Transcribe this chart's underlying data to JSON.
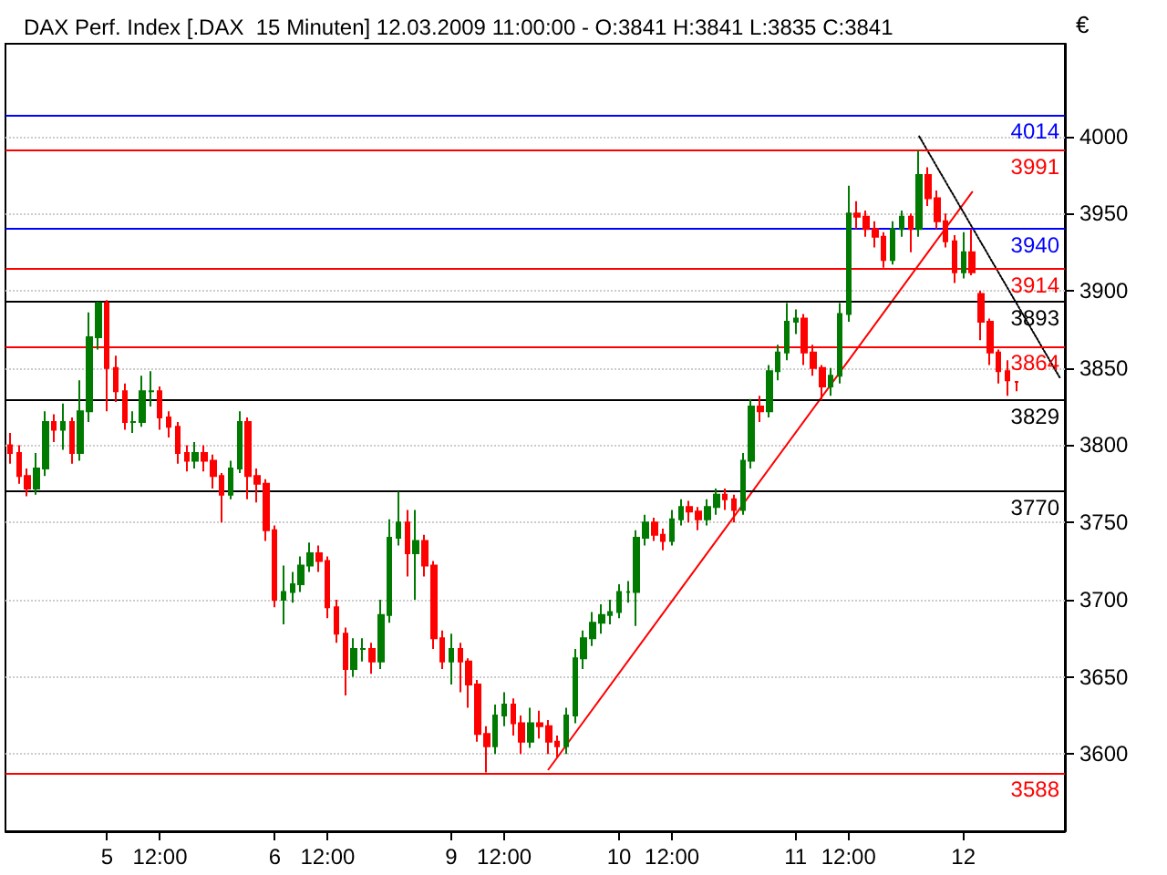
{
  "chart_data": {
    "type": "candlestick",
    "title": "DAX Perf. Index [.DAX  15 Minuten] 12.03.2009 11:00:00 - O:3841 H:3841 L:3835 C:3841",
    "ylabel": "€",
    "categories": [
      null,
      null,
      null,
      null,
      null,
      null,
      null,
      null,
      null,
      null,
      null,
      "5",
      null,
      null,
      null,
      null,
      null,
      "12:00",
      null,
      null,
      null,
      null,
      null,
      null,
      null,
      null,
      null,
      null,
      null,
      null,
      "6",
      null,
      null,
      null,
      null,
      null,
      "12:00",
      null,
      null,
      null,
      null,
      null,
      null,
      null,
      null,
      null,
      null,
      null,
      null,
      null,
      "9",
      null,
      null,
      null,
      null,
      null,
      "12:00",
      null,
      null,
      null,
      null,
      null,
      null,
      null,
      null,
      null,
      null,
      null,
      null,
      "10",
      null,
      null,
      null,
      null,
      null,
      "12:00",
      null,
      null,
      null,
      null,
      null,
      null,
      null,
      null,
      null,
      null,
      null,
      null,
      null,
      "11",
      null,
      null,
      null,
      null,
      null,
      "12:00",
      null,
      null,
      null,
      null,
      null,
      null,
      null,
      null,
      null,
      null,
      null,
      null,
      "12",
      null,
      null,
      null,
      null,
      null,
      null,
      null,
      null,
      null,
      null,
      null
    ],
    "ohlc": [
      [
        3800,
        3808,
        3788,
        3795
      ],
      [
        3795,
        3800,
        3775,
        3780
      ],
      [
        3780,
        3785,
        3767,
        3772
      ],
      [
        3772,
        3795,
        3768,
        3785
      ],
      [
        3785,
        3822,
        3780,
        3815
      ],
      [
        3815,
        3820,
        3802,
        3810
      ],
      [
        3810,
        3827,
        3797,
        3815
      ],
      [
        3815,
        3818,
        3788,
        3795
      ],
      [
        3795,
        3842,
        3790,
        3822
      ],
      [
        3822,
        3886,
        3815,
        3870
      ],
      [
        3870,
        3893,
        3862,
        3892
      ],
      [
        3892,
        3894,
        3822,
        3850
      ],
      [
        3850,
        3858,
        3828,
        3835
      ],
      [
        3835,
        3840,
        3810,
        3815
      ],
      [
        3815,
        3822,
        3808,
        3815
      ],
      [
        3815,
        3845,
        3812,
        3835
      ],
      [
        3835,
        3848,
        3825,
        3835
      ],
      [
        3835,
        3838,
        3810,
        3818
      ],
      [
        3818,
        3822,
        3805,
        3812
      ],
      [
        3812,
        3815,
        3788,
        3795
      ],
      [
        3795,
        3800,
        3783,
        3790
      ],
      [
        3790,
        3802,
        3785,
        3795
      ],
      [
        3795,
        3800,
        3783,
        3790
      ],
      [
        3790,
        3794,
        3772,
        3780
      ],
      [
        3780,
        3782,
        3750,
        3768
      ],
      [
        3768,
        3790,
        3765,
        3785
      ],
      [
        3785,
        3822,
        3782,
        3815
      ],
      [
        3815,
        3818,
        3765,
        3780
      ],
      [
        3780,
        3785,
        3763,
        3775
      ],
      [
        3775,
        3778,
        3738,
        3745
      ],
      [
        3745,
        3748,
        3695,
        3700
      ],
      [
        3700,
        3722,
        3684,
        3705
      ],
      [
        3705,
        3718,
        3698,
        3710
      ],
      [
        3710,
        3728,
        3705,
        3722
      ],
      [
        3722,
        3737,
        3718,
        3730
      ],
      [
        3730,
        3735,
        3718,
        3725
      ],
      [
        3725,
        3728,
        3688,
        3695
      ],
      [
        3695,
        3700,
        3672,
        3678
      ],
      [
        3678,
        3682,
        3638,
        3655
      ],
      [
        3655,
        3675,
        3650,
        3668
      ],
      [
        3668,
        3675,
        3660,
        3668
      ],
      [
        3668,
        3672,
        3652,
        3660
      ],
      [
        3660,
        3700,
        3655,
        3690
      ],
      [
        3690,
        3752,
        3685,
        3740
      ],
      [
        3740,
        3770,
        3735,
        3750
      ],
      [
        3750,
        3758,
        3715,
        3730
      ],
      [
        3730,
        3758,
        3700,
        3738
      ],
      [
        3738,
        3742,
        3715,
        3722
      ],
      [
        3722,
        3725,
        3668,
        3675
      ],
      [
        3675,
        3680,
        3655,
        3660
      ],
      [
        3660,
        3678,
        3645,
        3668
      ],
      [
        3668,
        3672,
        3640,
        3660
      ],
      [
        3660,
        3662,
        3630,
        3645
      ],
      [
        3645,
        3648,
        3608,
        3613
      ],
      [
        3613,
        3618,
        3588,
        3605
      ],
      [
        3605,
        3632,
        3600,
        3625
      ],
      [
        3625,
        3640,
        3618,
        3632
      ],
      [
        3632,
        3636,
        3612,
        3620
      ],
      [
        3620,
        3625,
        3600,
        3608
      ],
      [
        3608,
        3630,
        3604,
        3620
      ],
      [
        3620,
        3628,
        3610,
        3618
      ],
      [
        3618,
        3622,
        3600,
        3608
      ],
      [
        3608,
        3612,
        3598,
        3605
      ],
      [
        3605,
        3630,
        3600,
        3625
      ],
      [
        3625,
        3668,
        3620,
        3662
      ],
      [
        3662,
        3680,
        3655,
        3675
      ],
      [
        3675,
        3692,
        3670,
        3685
      ],
      [
        3685,
        3697,
        3678,
        3690
      ],
      [
        3690,
        3700,
        3684,
        3692
      ],
      [
        3692,
        3710,
        3688,
        3705
      ],
      [
        3705,
        3712,
        3698,
        3705
      ],
      [
        3705,
        3745,
        3683,
        3740
      ],
      [
        3740,
        3755,
        3735,
        3750
      ],
      [
        3750,
        3753,
        3738,
        3742
      ],
      [
        3742,
        3746,
        3732,
        3738
      ],
      [
        3738,
        3758,
        3735,
        3752
      ],
      [
        3752,
        3765,
        3748,
        3760
      ],
      [
        3760,
        3764,
        3750,
        3757
      ],
      [
        3757,
        3760,
        3745,
        3752
      ],
      [
        3752,
        3765,
        3748,
        3760
      ],
      [
        3760,
        3772,
        3755,
        3768
      ],
      [
        3768,
        3772,
        3758,
        3765
      ],
      [
        3765,
        3768,
        3750,
        3758
      ],
      [
        3758,
        3795,
        3755,
        3790
      ],
      [
        3790,
        3830,
        3785,
        3825
      ],
      [
        3825,
        3832,
        3815,
        3822
      ],
      [
        3822,
        3852,
        3818,
        3848
      ],
      [
        3848,
        3865,
        3842,
        3860
      ],
      [
        3860,
        3892,
        3855,
        3880
      ],
      [
        3880,
        3888,
        3872,
        3882
      ],
      [
        3882,
        3885,
        3852,
        3860
      ],
      [
        3860,
        3865,
        3845,
        3850
      ],
      [
        3850,
        3852,
        3829,
        3838
      ],
      [
        3838,
        3850,
        3832,
        3845
      ],
      [
        3845,
        3892,
        3840,
        3885
      ],
      [
        3885,
        3968,
        3880,
        3950
      ],
      [
        3950,
        3958,
        3940,
        3948
      ],
      [
        3948,
        3952,
        3935,
        3940
      ],
      [
        3940,
        3945,
        3928,
        3935
      ],
      [
        3935,
        3938,
        3915,
        3920
      ],
      [
        3920,
        3945,
        3917,
        3940
      ],
      [
        3940,
        3952,
        3935,
        3948
      ],
      [
        3948,
        3950,
        3925,
        3940
      ],
      [
        3940,
        3991,
        3935,
        3975
      ],
      [
        3975,
        3980,
        3955,
        3960
      ],
      [
        3960,
        3965,
        3940,
        3945
      ],
      [
        3945,
        3950,
        3928,
        3932
      ],
      [
        3932,
        3936,
        3905,
        3912
      ],
      [
        3912,
        3938,
        3908,
        3925
      ],
      [
        3925,
        3940,
        3910,
        3912
      ],
      [
        3898,
        3900,
        3868,
        3880
      ],
      [
        3880,
        3882,
        3852,
        3860
      ],
      [
        3860,
        3862,
        3840,
        3848
      ],
      [
        3848,
        3855,
        3832,
        3842
      ],
      [
        3841,
        3841,
        3835,
        3841
      ],
      null,
      null,
      null,
      null,
      null
    ],
    "series": [
      {
        "type": "line",
        "color": "#ff0000",
        "line_style": "solid",
        "values": [
          null,
          null,
          null,
          null,
          null,
          null,
          null,
          null,
          null,
          null,
          null,
          null,
          null,
          null,
          null,
          null,
          null,
          null,
          null,
          null,
          null,
          null,
          null,
          null,
          null,
          null,
          null,
          null,
          null,
          null,
          null,
          null,
          null,
          null,
          null,
          null,
          null,
          null,
          null,
          null,
          null,
          null,
          null,
          null,
          null,
          null,
          null,
          null,
          null,
          null,
          null,
          null,
          null,
          null,
          null,
          null,
          null,
          null,
          null,
          null,
          null,
          3590,
          null,
          null,
          null,
          null,
          null,
          null,
          null,
          null,
          null,
          null,
          null,
          null,
          null,
          null,
          null,
          null,
          null,
          null,
          null,
          null,
          null,
          null,
          null,
          null,
          null,
          null,
          null,
          null,
          null,
          null,
          null,
          null,
          null,
          null,
          null,
          null,
          null,
          null,
          null,
          null,
          null,
          null,
          null,
          null,
          null,
          null,
          null,
          3964,
          null,
          null,
          null,
          null,
          null,
          null,
          null,
          null,
          null,
          null
        ]
      },
      {
        "type": "line",
        "color": "#000000",
        "line_style": "dotted",
        "values": [
          null,
          null,
          null,
          null,
          null,
          null,
          null,
          null,
          null,
          null,
          null,
          null,
          null,
          null,
          null,
          null,
          null,
          null,
          null,
          null,
          null,
          null,
          null,
          null,
          null,
          null,
          null,
          null,
          null,
          null,
          null,
          null,
          null,
          null,
          null,
          null,
          null,
          null,
          null,
          null,
          null,
          null,
          null,
          null,
          null,
          null,
          null,
          null,
          null,
          null,
          null,
          null,
          null,
          null,
          null,
          null,
          null,
          null,
          null,
          null,
          null,
          null,
          null,
          null,
          null,
          null,
          null,
          null,
          null,
          null,
          null,
          null,
          null,
          null,
          null,
          null,
          null,
          null,
          null,
          null,
          null,
          null,
          null,
          null,
          null,
          null,
          null,
          null,
          null,
          null,
          null,
          null,
          null,
          null,
          null,
          null,
          null,
          null,
          null,
          null,
          null,
          null,
          null,
          4000,
          null,
          null,
          null,
          null,
          null,
          null,
          null,
          null,
          null,
          null,
          null,
          null,
          null,
          null,
          null,
          3843
        ]
      }
    ],
    "ref_lines": [
      {
        "axis": "y",
        "value": 4014,
        "label": "4014",
        "color": "#0000ff"
      },
      {
        "axis": "y",
        "value": 3991,
        "label": "3991",
        "color": "#ff0000"
      },
      {
        "axis": "y",
        "value": 3940,
        "label": "3940",
        "color": "#0000ff"
      },
      {
        "axis": "y",
        "value": 3914,
        "label": "3914",
        "color": "#ff0000"
      },
      {
        "axis": "y",
        "value": 3893,
        "label": "3893",
        "color": "#000000"
      },
      {
        "axis": "y",
        "value": 3864,
        "label": "3864",
        "color": "#ff0000"
      },
      {
        "axis": "y",
        "value": 3829,
        "label": "3829",
        "color": "#000000"
      },
      {
        "axis": "y",
        "value": 3770,
        "label": "3770",
        "color": "#000000"
      },
      {
        "axis": "y",
        "value": 3588,
        "label": "3588",
        "color": "#ff0000"
      }
    ],
    "ylim": [
      3550,
      4060
    ],
    "yticks": [
      3600,
      3650,
      3700,
      3750,
      3800,
      3850,
      3900,
      3950,
      4000
    ],
    "grid": "y",
    "marker": "none"
  }
}
